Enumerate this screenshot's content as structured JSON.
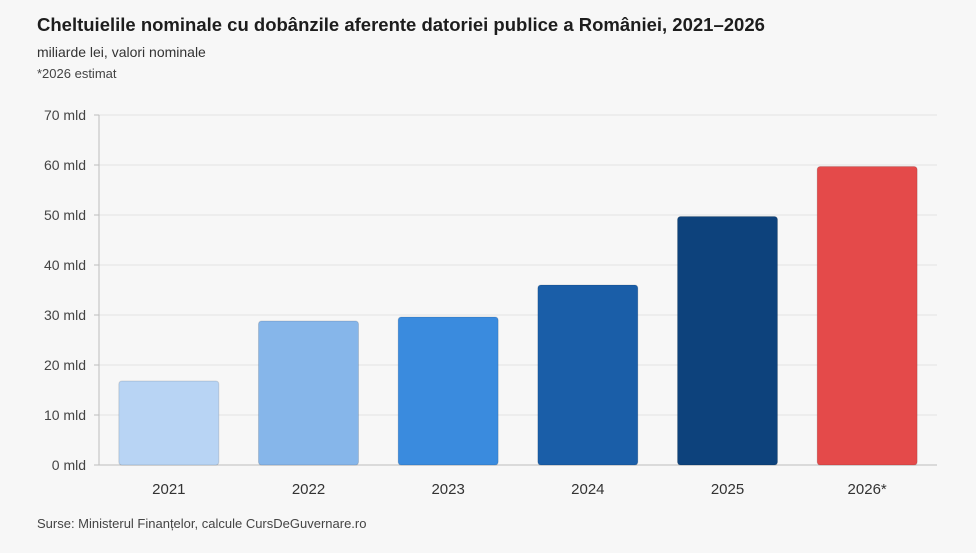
{
  "header": {
    "title": "Cheltuielile nominale cu dobânzile aferente datoriei publice a României, 2021–2026",
    "subtitle": "miliarde lei, valori nominale",
    "note": "*2026 estimat"
  },
  "footer": {
    "source": "Surse: Ministerul Finanțelor, calcule CursDeGuvernare.ro"
  },
  "chart_data": {
    "type": "bar",
    "title": "Cheltuielile nominale cu dobânzile aferente datoriei publice a României, 2021–2026",
    "subtitle": "miliarde lei, valori nominale",
    "categories": [
      "2021",
      "2022",
      "2023",
      "2024",
      "2025",
      "2026*"
    ],
    "values": [
      16.8,
      28.8,
      29.6,
      36.0,
      49.7,
      59.7
    ],
    "colors": [
      "#b8d4f4",
      "#86b6ea",
      "#3a8bde",
      "#1a5ea8",
      "#0d427c",
      "#e44a4a"
    ],
    "ylim": [
      0,
      70
    ],
    "yticks": [
      0,
      10,
      20,
      30,
      40,
      50,
      60,
      70
    ],
    "ytick_labels": [
      "0 mld",
      "10 mld",
      "20 mld",
      "30 mld",
      "40 mld",
      "50 mld",
      "60 mld",
      "70 mld"
    ],
    "grid": true,
    "xlabel": "",
    "ylabel": ""
  }
}
